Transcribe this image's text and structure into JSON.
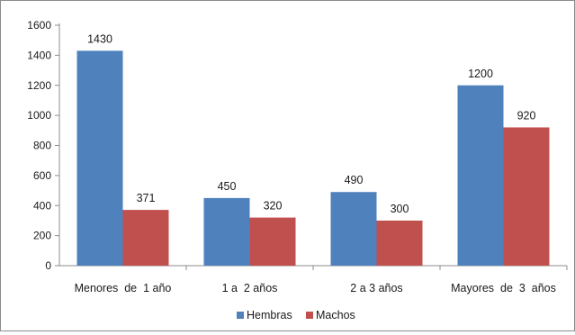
{
  "chart_data": {
    "type": "bar",
    "title": "",
    "xlabel": "",
    "ylabel": "",
    "categories": [
      "Menores  de  1 año",
      "1 a  2 años",
      "2 a 3 años",
      "Mayores  de  3  años"
    ],
    "series": [
      {
        "name": "Hembras",
        "color": "#4f81bd",
        "values": [
          1430,
          450,
          490,
          1200
        ]
      },
      {
        "name": "Machos",
        "color": "#c0504d",
        "values": [
          371,
          320,
          300,
          920
        ]
      }
    ],
    "ylim": [
      0,
      1600
    ],
    "yticks": [
      "0",
      "200",
      "400",
      "600",
      "800",
      "1000",
      "1200",
      "1400",
      "1600"
    ],
    "grid": false,
    "legend_position": "bottom"
  }
}
